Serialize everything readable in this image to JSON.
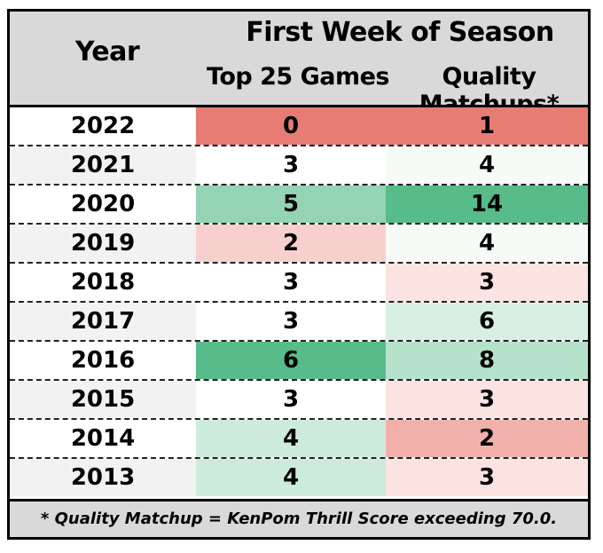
{
  "chart_data": {
    "type": "table",
    "header": {
      "year": "Year",
      "group": "First Week of Season",
      "columns": [
        "Top 25 Games",
        "Quality Matchups*"
      ]
    },
    "rows": [
      {
        "year": "2022",
        "top25": "0",
        "qm": "1",
        "year_bg": "#ffffff",
        "top25_bg": "#e67c73",
        "qm_bg": "#e67c73"
      },
      {
        "year": "2021",
        "top25": "3",
        "qm": "4",
        "year_bg": "#f2f2f2",
        "top25_bg": "#ffffff",
        "qm_bg": "#f7fbf8"
      },
      {
        "year": "2020",
        "top25": "5",
        "qm": "14",
        "year_bg": "#ffffff",
        "top25_bg": "#94d3b3",
        "qm_bg": "#57bb8a"
      },
      {
        "year": "2019",
        "top25": "2",
        "qm": "4",
        "year_bg": "#f2f2f2",
        "top25_bg": "#f7d0cd",
        "qm_bg": "#f7fbf8"
      },
      {
        "year": "2018",
        "top25": "3",
        "qm": "3",
        "year_bg": "#ffffff",
        "top25_bg": "#ffffff",
        "qm_bg": "#fbe3e1"
      },
      {
        "year": "2017",
        "top25": "3",
        "qm": "6",
        "year_bg": "#f2f2f2",
        "top25_bg": "#ffffff",
        "qm_bg": "#d7efe2"
      },
      {
        "year": "2016",
        "top25": "6",
        "qm": "8",
        "year_bg": "#ffffff",
        "top25_bg": "#57bb8a",
        "qm_bg": "#b6e1ca"
      },
      {
        "year": "2015",
        "top25": "3",
        "qm": "3",
        "year_bg": "#f2f2f2",
        "top25_bg": "#ffffff",
        "qm_bg": "#fbe3e1"
      },
      {
        "year": "2014",
        "top25": "4",
        "qm": "2",
        "year_bg": "#ffffff",
        "top25_bg": "#cdebdc",
        "qm_bg": "#f2b0aa"
      },
      {
        "year": "2013",
        "top25": "4",
        "qm": "3",
        "year_bg": "#f2f2f2",
        "top25_bg": "#cdebdc",
        "qm_bg": "#fbe3e1"
      }
    ],
    "footnote": "* Quality Matchup = KenPom Thrill Score exceeding 70.0."
  }
}
